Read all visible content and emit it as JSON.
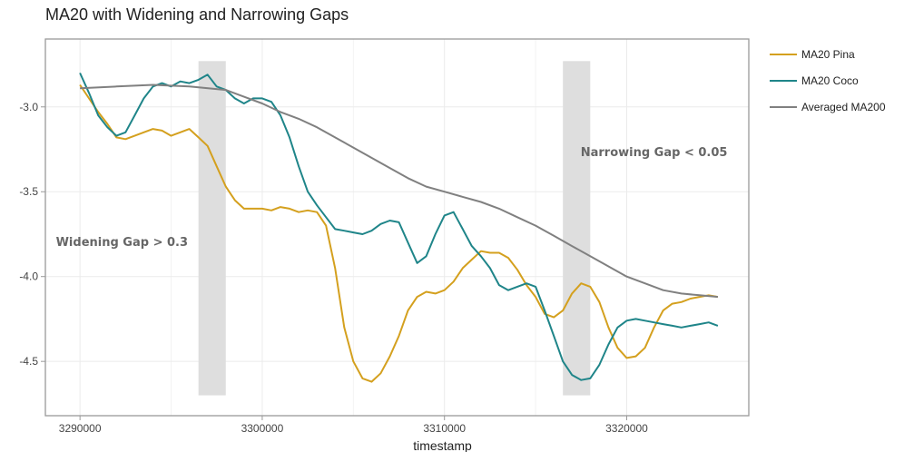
{
  "chart_data": {
    "type": "line",
    "title": "MA20 with Widening and Narrowing Gaps",
    "xlabel": "timestamp",
    "ylabel": "",
    "xlim": [
      3288100,
      3326700
    ],
    "ylim": [
      -4.82,
      -2.6
    ],
    "x_ticks": [
      3290000,
      3300000,
      3310000,
      3320000
    ],
    "x_tick_labels": [
      "3290000",
      "3300000",
      "3310000",
      "3320000"
    ],
    "y_ticks": [
      -3.0,
      -3.5,
      -4.0,
      -4.5
    ],
    "y_tick_labels": [
      "-3.0",
      "-3.5",
      "-4.0",
      "-4.5"
    ],
    "grid": true,
    "legend_position": "right",
    "series": [
      {
        "name": "MA20 Pina",
        "color": "#d4a01e",
        "x": [
          3290000,
          3291000,
          3291500,
          3292000,
          3292500,
          3293000,
          3293500,
          3294000,
          3294500,
          3295000,
          3295500,
          3296000,
          3296500,
          3297000,
          3297500,
          3298000,
          3298500,
          3299000,
          3299500,
          3300000,
          3300500,
          3301000,
          3301500,
          3302000,
          3302500,
          3303000,
          3303500,
          3304000,
          3304500,
          3305000,
          3305500,
          3306000,
          3306500,
          3307000,
          3307500,
          3308000,
          3308500,
          3309000,
          3309500,
          3310000,
          3310500,
          3311000,
          3311500,
          3312000,
          3312500,
          3313000,
          3313500,
          3314000,
          3314500,
          3315000,
          3315500,
          3316000,
          3316500,
          3317000,
          3317500,
          3318000,
          3318500,
          3319000,
          3319500,
          3320000,
          3320500,
          3321000,
          3321500,
          3322000,
          3322500,
          3323000,
          3323500,
          3324000,
          3324500,
          3325000
        ],
        "y": [
          -2.87,
          -3.03,
          -3.1,
          -3.18,
          -3.19,
          -3.17,
          -3.15,
          -3.13,
          -3.14,
          -3.17,
          -3.15,
          -3.13,
          -3.18,
          -3.23,
          -3.35,
          -3.47,
          -3.55,
          -3.6,
          -3.6,
          -3.6,
          -3.61,
          -3.59,
          -3.6,
          -3.62,
          -3.61,
          -3.62,
          -3.7,
          -3.95,
          -4.3,
          -4.5,
          -4.6,
          -4.62,
          -4.57,
          -4.47,
          -4.35,
          -4.2,
          -4.12,
          -4.09,
          -4.1,
          -4.08,
          -4.03,
          -3.95,
          -3.9,
          -3.85,
          -3.86,
          -3.86,
          -3.89,
          -3.96,
          -4.05,
          -4.12,
          -4.22,
          -4.24,
          -4.2,
          -4.1,
          -4.04,
          -4.06,
          -4.15,
          -4.3,
          -4.42,
          -4.48,
          -4.47,
          -4.42,
          -4.3,
          -4.2,
          -4.16,
          -4.15,
          -4.13,
          -4.12,
          -4.11,
          -4.12
        ]
      },
      {
        "name": "MA20 Coco",
        "color": "#1f8589",
        "x": [
          3290000,
          3290500,
          3291000,
          3291500,
          3292000,
          3292500,
          3293000,
          3293500,
          3294000,
          3294500,
          3295000,
          3295500,
          3296000,
          3296500,
          3297000,
          3297500,
          3298000,
          3298500,
          3299000,
          3299500,
          3300000,
          3300500,
          3301000,
          3301500,
          3302000,
          3302500,
          3303000,
          3303500,
          3304000,
          3304500,
          3305000,
          3305500,
          3306000,
          3306500,
          3307000,
          3307500,
          3308000,
          3308500,
          3309000,
          3309500,
          3310000,
          3310500,
          3311000,
          3311500,
          3312000,
          3312500,
          3313000,
          3313500,
          3314000,
          3314500,
          3315000,
          3315500,
          3316000,
          3316500,
          3317000,
          3317500,
          3318000,
          3318500,
          3319000,
          3319500,
          3320000,
          3320500,
          3321000,
          3321500,
          3322000,
          3322500,
          3323000,
          3323500,
          3324000,
          3324500,
          3325000
        ],
        "y": [
          -2.8,
          -2.92,
          -3.05,
          -3.12,
          -3.17,
          -3.15,
          -3.05,
          -2.95,
          -2.88,
          -2.86,
          -2.88,
          -2.85,
          -2.86,
          -2.84,
          -2.81,
          -2.88,
          -2.9,
          -2.95,
          -2.98,
          -2.95,
          -2.95,
          -2.97,
          -3.05,
          -3.18,
          -3.35,
          -3.5,
          -3.58,
          -3.65,
          -3.72,
          -3.73,
          -3.74,
          -3.75,
          -3.73,
          -3.69,
          -3.67,
          -3.68,
          -3.8,
          -3.92,
          -3.88,
          -3.75,
          -3.64,
          -3.62,
          -3.72,
          -3.82,
          -3.88,
          -3.95,
          -4.05,
          -4.08,
          -4.06,
          -4.04,
          -4.06,
          -4.2,
          -4.35,
          -4.5,
          -4.58,
          -4.61,
          -4.6,
          -4.52,
          -4.4,
          -4.3,
          -4.26,
          -4.25,
          -4.26,
          -4.27,
          -4.28,
          -4.29,
          -4.3,
          -4.29,
          -4.28,
          -4.27,
          -4.29
        ]
      },
      {
        "name": "Averaged MA200",
        "color": "#808080",
        "x": [
          3290000,
          3292000,
          3294000,
          3296000,
          3298000,
          3299000,
          3300000,
          3301000,
          3302000,
          3303000,
          3304000,
          3305000,
          3306000,
          3307000,
          3308000,
          3309000,
          3310000,
          3311000,
          3312000,
          3313000,
          3314000,
          3315000,
          3316000,
          3317000,
          3318000,
          3319000,
          3320000,
          3321000,
          3322000,
          3323000,
          3324000,
          3325000
        ],
        "y": [
          -2.89,
          -2.88,
          -2.87,
          -2.88,
          -2.9,
          -2.94,
          -2.98,
          -3.03,
          -3.07,
          -3.12,
          -3.18,
          -3.24,
          -3.3,
          -3.36,
          -3.42,
          -3.47,
          -3.5,
          -3.53,
          -3.56,
          -3.6,
          -3.65,
          -3.7,
          -3.76,
          -3.82,
          -3.88,
          -3.94,
          -4.0,
          -4.04,
          -4.08,
          -4.1,
          -4.11,
          -4.12
        ]
      }
    ],
    "highlight_bands": [
      {
        "x0": 3296500,
        "x1": 3298000,
        "y0": -4.7,
        "y1": -2.73,
        "color": "#dedede"
      },
      {
        "x0": 3316500,
        "x1": 3318000,
        "y0": -4.7,
        "y1": -2.73,
        "color": "#dedede"
      }
    ],
    "annotations": [
      {
        "text": "Widening Gap > 0.3",
        "x": 3292300,
        "y": -3.82
      },
      {
        "text": "Narrowing Gap < 0.05",
        "x": 3321500,
        "y": -3.29
      }
    ]
  }
}
